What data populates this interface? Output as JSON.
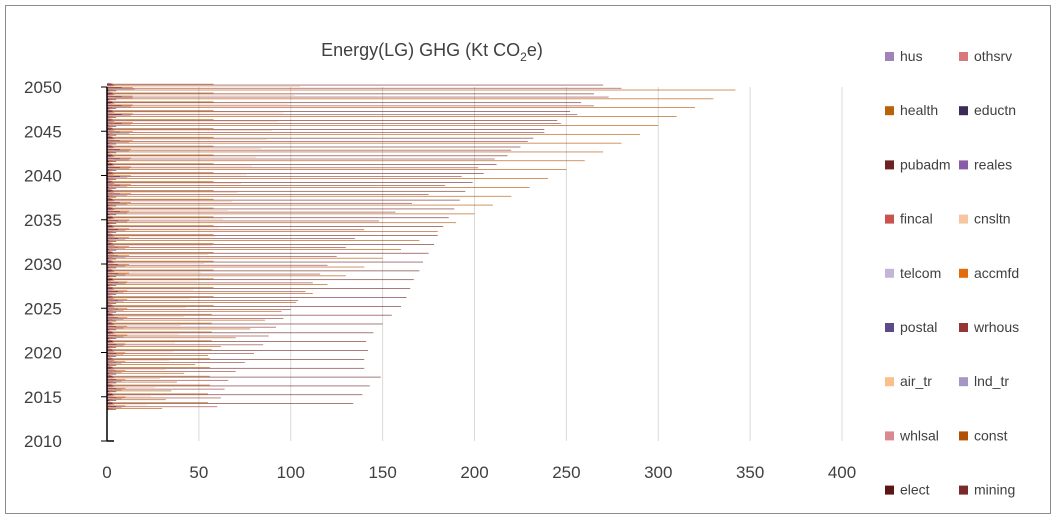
{
  "chart_data": {
    "type": "bar",
    "orientation": "horizontal",
    "title": "Energy(LG) GHG (Kt CO2e)",
    "title_parts": {
      "main": "Energy(LG) GHG (Kt CO",
      "sub": "2",
      "tail": "e)"
    },
    "xlim": [
      0,
      400
    ],
    "x_ticks": [
      "0",
      "50",
      "100",
      "150",
      "200",
      "250",
      "300",
      "350",
      "400"
    ],
    "y_range": [
      2010,
      2050
    ],
    "y_ticks": [
      "2010",
      "2015",
      "2020",
      "2025",
      "2030",
      "2035",
      "2040",
      "2045",
      "2050"
    ],
    "grid": "vertical",
    "legend_position": "right",
    "categories": [
      "2014",
      "2015",
      "2016",
      "2017",
      "2018",
      "2019",
      "2020",
      "2021",
      "2022",
      "2023",
      "2024",
      "2025",
      "2026",
      "2027",
      "2028",
      "2029",
      "2030",
      "2031",
      "2032",
      "2033",
      "2034",
      "2035",
      "2036",
      "2037",
      "2038",
      "2039",
      "2040",
      "2041",
      "2042",
      "2043",
      "2044",
      "2045",
      "2046",
      "2047",
      "2048",
      "2049",
      "2050"
    ],
    "series": [
      {
        "name": "hus",
        "color": "#a083b8",
        "values": [
          2,
          2,
          2,
          2,
          2,
          2,
          2,
          2,
          2,
          2,
          2,
          2,
          2,
          2,
          2,
          2,
          2,
          2,
          2,
          2,
          2,
          2,
          2,
          2,
          2,
          2,
          2,
          2,
          2,
          2,
          2,
          2,
          2,
          2,
          2,
          2,
          2
        ]
      },
      {
        "name": "othsrv",
        "color": "#d9787c",
        "values": [
          3,
          3,
          3,
          3,
          3,
          3,
          3,
          3,
          3,
          3,
          3,
          3,
          3,
          3,
          3,
          3,
          3,
          3,
          3,
          3,
          3,
          3,
          3,
          3,
          3,
          3,
          3,
          3,
          3,
          3,
          3,
          3,
          3,
          3,
          3,
          3,
          3
        ]
      },
      {
        "name": "health",
        "color": "#b8630c",
        "values": [
          55,
          55,
          56,
          56,
          56,
          56,
          57,
          57,
          57,
          57,
          57,
          58,
          58,
          58,
          58,
          58,
          58,
          58,
          58,
          58,
          58,
          58,
          58,
          58,
          58,
          58,
          58,
          58,
          58,
          58,
          58,
          58,
          58,
          58,
          58,
          58,
          58
        ]
      },
      {
        "name": "eductn",
        "color": "#3d2b57",
        "values": [
          3,
          3,
          3,
          3,
          3,
          3,
          3,
          3,
          3,
          3,
          3,
          3,
          3,
          3,
          3,
          3,
          3,
          3,
          3,
          3,
          3,
          3,
          3,
          3,
          3,
          3,
          3,
          3,
          3,
          3,
          3,
          3,
          3,
          3,
          3,
          3,
          3
        ]
      },
      {
        "name": "pubadm",
        "color": "#6e2323",
        "values": [
          134,
          139,
          143,
          149,
          140,
          140,
          142,
          141,
          145,
          150,
          155,
          160,
          163,
          165,
          167,
          170,
          172,
          175,
          178,
          180,
          183,
          186,
          189,
          192,
          195,
          199,
          205,
          212,
          218,
          225,
          232,
          238,
          245,
          252,
          258,
          265,
          270
        ]
      },
      {
        "name": "reales",
        "color": "#8a5ca8",
        "values": [
          2,
          2,
          2,
          2,
          2,
          2,
          2,
          2,
          2,
          2,
          2,
          2,
          2,
          2,
          2,
          2,
          2,
          2,
          2,
          2,
          2,
          2,
          2,
          2,
          2,
          2,
          2,
          2,
          2,
          2,
          2,
          2,
          2,
          2,
          2,
          2,
          2
        ]
      },
      {
        "name": "fincal",
        "color": "#c9534f",
        "values": [
          4,
          4,
          4,
          4,
          4,
          4,
          4,
          4,
          4,
          4,
          4,
          4,
          4,
          4,
          4,
          4,
          4,
          4,
          4,
          4,
          4,
          4,
          4,
          4,
          4,
          4,
          4,
          4,
          4,
          4,
          4,
          4,
          4,
          4,
          4,
          4,
          4
        ]
      },
      {
        "name": "cnsltn",
        "color": "#f7c6a0",
        "values": [
          22,
          24,
          26,
          29,
          32,
          34,
          36,
          37,
          39,
          40,
          42,
          43,
          45,
          47,
          49,
          51,
          53,
          55,
          57,
          59,
          61,
          63,
          66,
          68,
          71,
          73,
          76,
          79,
          81,
          84,
          87,
          90,
          93,
          96,
          99,
          102,
          105
        ]
      },
      {
        "name": "telcom",
        "color": "#c4b5d8",
        "values": [
          3,
          3,
          3,
          3,
          3,
          3,
          3,
          3,
          3,
          3,
          3,
          3,
          3,
          3,
          3,
          3,
          3,
          3,
          3,
          3,
          3,
          3,
          3,
          3,
          3,
          3,
          3,
          3,
          3,
          3,
          3,
          3,
          3,
          3,
          3,
          3,
          3
        ]
      },
      {
        "name": "accmfd",
        "color": "#e36c09",
        "values": [
          10,
          10,
          10,
          10,
          10,
          10,
          10,
          10,
          11,
          11,
          11,
          11,
          11,
          11,
          11,
          12,
          12,
          12,
          12,
          12,
          12,
          12,
          12,
          13,
          13,
          13,
          13,
          13,
          13,
          13,
          14,
          14,
          14,
          14,
          14,
          14,
          14
        ]
      },
      {
        "name": "postal",
        "color": "#5b4a8a",
        "values": [
          5,
          5,
          5,
          5,
          5,
          5,
          5,
          5,
          5,
          5,
          6,
          6,
          6,
          6,
          6,
          6,
          6,
          6,
          6,
          6,
          6,
          6,
          7,
          7,
          7,
          7,
          7,
          7,
          7,
          7,
          7,
          7,
          8,
          8,
          8,
          8,
          8
        ]
      },
      {
        "name": "wrhous",
        "color": "#943634",
        "values": [
          60,
          62,
          64,
          66,
          70,
          75,
          80,
          85,
          88,
          92,
          96,
          100,
          104,
          108,
          112,
          116,
          120,
          125,
          130,
          135,
          140,
          148,
          157,
          166,
          175,
          184,
          193,
          202,
          211,
          220,
          229,
          238,
          247,
          256,
          265,
          273,
          280
        ]
      },
      {
        "name": "air_tr",
        "color": "#fbc08a",
        "values": [
          4,
          4,
          4,
          4,
          4,
          4,
          4,
          4,
          4,
          4,
          4,
          4,
          4,
          4,
          4,
          4,
          4,
          4,
          4,
          4,
          4,
          4,
          4,
          4,
          4,
          4,
          4,
          4,
          4,
          4,
          4,
          4,
          4,
          4,
          4,
          4,
          4
        ]
      },
      {
        "name": "lnd_tr",
        "color": "#a596c4",
        "values": [
          8,
          8,
          8,
          8,
          8,
          8,
          9,
          9,
          9,
          9,
          9,
          9,
          9,
          9,
          10,
          10,
          10,
          10,
          10,
          10,
          10,
          11,
          11,
          11,
          11,
          11,
          11,
          12,
          12,
          12,
          12,
          12,
          13,
          13,
          13,
          14,
          15
        ]
      },
      {
        "name": "whlsal",
        "color": "#da8a8f",
        "values": [
          3,
          3,
          3,
          3,
          3,
          3,
          3,
          3,
          3,
          3,
          3,
          3,
          3,
          3,
          3,
          3,
          3,
          3,
          3,
          3,
          3,
          3,
          3,
          3,
          3,
          3,
          3,
          3,
          3,
          3,
          3,
          3,
          3,
          3,
          3,
          3,
          3
        ]
      },
      {
        "name": "const",
        "color": "#b05000",
        "values": [
          30,
          32,
          35,
          38,
          42,
          48,
          55,
          62,
          70,
          78,
          86,
          95,
          103,
          112,
          120,
          130,
          140,
          150,
          160,
          170,
          180,
          190,
          200,
          210,
          220,
          230,
          240,
          250,
          260,
          270,
          280,
          290,
          300,
          310,
          320,
          330,
          342
        ]
      },
      {
        "name": "elect",
        "color": "#5c1414",
        "values": [
          1,
          1,
          1,
          1,
          1,
          1,
          1,
          1,
          1,
          1,
          1,
          1,
          1,
          1,
          1,
          1,
          1,
          1,
          1,
          1,
          1,
          1,
          1,
          1,
          1,
          1,
          1,
          1,
          1,
          1,
          1,
          1,
          1,
          1,
          1,
          1,
          1
        ]
      },
      {
        "name": "mining",
        "color": "#7a2a2a",
        "values": [
          5,
          5,
          5,
          5,
          5,
          5,
          5,
          5,
          5,
          5,
          5,
          5,
          5,
          5,
          5,
          5,
          5,
          5,
          5,
          5,
          5,
          5,
          5,
          5,
          5,
          5,
          5,
          5,
          5,
          5,
          5,
          5,
          5,
          5,
          5,
          5,
          5
        ]
      }
    ]
  }
}
